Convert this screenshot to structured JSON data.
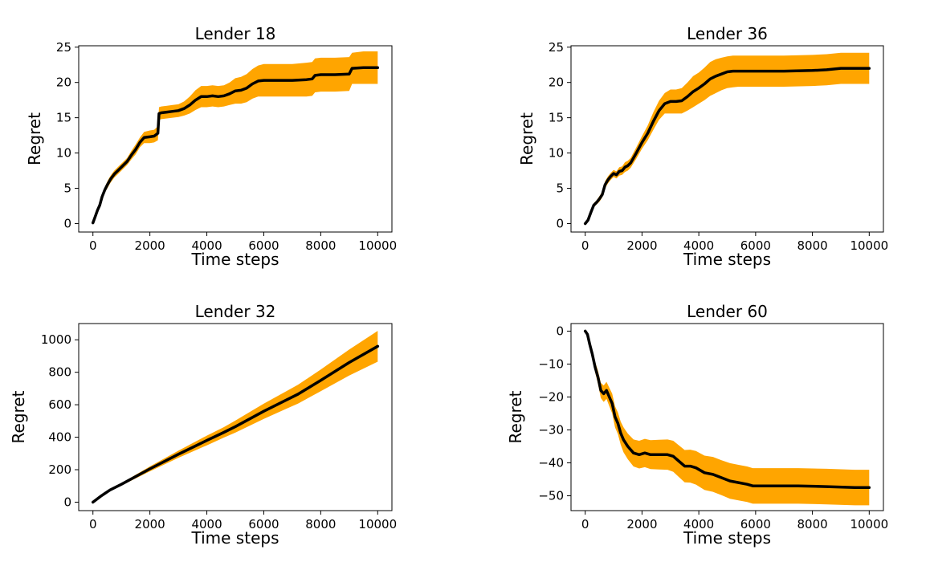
{
  "figure": {
    "background": "#ffffff",
    "band_color": "#FFA500",
    "line_color": "#000000"
  },
  "chart_data": [
    {
      "type": "line",
      "title": "Lender 18",
      "xlabel": "Time steps",
      "ylabel": "Regret",
      "xlim": [
        -500,
        10500
      ],
      "ylim": [
        -1.2,
        25.2
      ],
      "xticks": [
        0,
        2000,
        4000,
        6000,
        8000,
        10000
      ],
      "yticks": [
        0,
        5,
        10,
        15,
        20,
        25
      ],
      "series": [
        {
          "name": "mean",
          "x": [
            0,
            80,
            160,
            240,
            320,
            420,
            520,
            620,
            750,
            900,
            1050,
            1200,
            1350,
            1500,
            1650,
            1800,
            2000,
            2150,
            2280,
            2320,
            2400,
            2600,
            2800,
            3000,
            3200,
            3400,
            3600,
            3800,
            4000,
            4200,
            4400,
            4600,
            4800,
            5000,
            5200,
            5400,
            5600,
            5800,
            6000,
            6500,
            7000,
            7500,
            7700,
            7800,
            8000,
            8500,
            9000,
            9100,
            9500,
            10000
          ],
          "y": [
            0.1,
            1.0,
            1.9,
            2.6,
            3.8,
            4.8,
            5.6,
            6.3,
            7.0,
            7.6,
            8.2,
            8.8,
            9.7,
            10.5,
            11.5,
            12.2,
            12.3,
            12.4,
            12.8,
            15.6,
            15.7,
            15.8,
            15.9,
            16.0,
            16.3,
            16.8,
            17.5,
            18.0,
            18.0,
            18.1,
            18.0,
            18.1,
            18.4,
            18.8,
            18.9,
            19.2,
            19.8,
            20.2,
            20.3,
            20.3,
            20.3,
            20.4,
            20.5,
            21.0,
            21.1,
            21.1,
            21.2,
            22.0,
            22.1,
            22.1
          ],
          "lower": [
            0.0,
            0.8,
            1.6,
            2.3,
            3.4,
            4.4,
            5.1,
            5.8,
            6.5,
            7.1,
            7.7,
            8.3,
            9.1,
            9.8,
            10.8,
            11.4,
            11.4,
            11.5,
            11.8,
            14.7,
            14.8,
            14.9,
            15.0,
            15.1,
            15.3,
            15.6,
            16.1,
            16.5,
            16.5,
            16.6,
            16.5,
            16.6,
            16.8,
            17.0,
            17.0,
            17.2,
            17.7,
            18.0,
            18.0,
            18.0,
            18.0,
            18.0,
            18.1,
            18.6,
            18.7,
            18.7,
            18.8,
            19.8,
            19.8,
            19.8
          ],
          "upper": [
            0.3,
            1.2,
            2.2,
            2.9,
            4.2,
            5.2,
            6.1,
            6.8,
            7.5,
            8.1,
            8.7,
            9.3,
            10.3,
            11.2,
            12.2,
            13.0,
            13.2,
            13.3,
            13.8,
            16.5,
            16.6,
            16.7,
            16.8,
            16.9,
            17.3,
            18.0,
            18.9,
            19.5,
            19.5,
            19.6,
            19.5,
            19.6,
            20.0,
            20.6,
            20.8,
            21.2,
            21.9,
            22.4,
            22.6,
            22.6,
            22.6,
            22.8,
            22.9,
            23.4,
            23.5,
            23.5,
            23.6,
            24.2,
            24.4,
            24.4
          ]
        }
      ]
    },
    {
      "type": "line",
      "title": "Lender 36",
      "xlabel": "Time steps",
      "ylabel": "Regret",
      "xlim": [
        -500,
        10500
      ],
      "ylim": [
        -1.2,
        25.2
      ],
      "xticks": [
        0,
        2000,
        4000,
        6000,
        8000,
        10000
      ],
      "yticks": [
        0,
        5,
        10,
        15,
        20,
        25
      ],
      "series": [
        {
          "name": "mean",
          "x": [
            0,
            100,
            200,
            300,
            400,
            500,
            600,
            700,
            800,
            900,
            1000,
            1100,
            1200,
            1300,
            1400,
            1500,
            1600,
            1800,
            2000,
            2200,
            2400,
            2600,
            2800,
            3000,
            3200,
            3400,
            3600,
            3800,
            4000,
            4200,
            4400,
            4600,
            4800,
            5000,
            5200,
            5400,
            6000,
            7000,
            8000,
            8500,
            9000,
            10000
          ],
          "y": [
            0.0,
            0.5,
            1.6,
            2.6,
            3.0,
            3.5,
            4.1,
            5.5,
            6.2,
            6.7,
            7.1,
            6.9,
            7.4,
            7.5,
            8.0,
            8.2,
            8.6,
            10.0,
            11.5,
            12.8,
            14.5,
            16.0,
            17.0,
            17.3,
            17.3,
            17.4,
            18.0,
            18.7,
            19.2,
            19.8,
            20.5,
            20.9,
            21.2,
            21.5,
            21.6,
            21.6,
            21.6,
            21.6,
            21.7,
            21.8,
            22.0,
            22.0
          ],
          "lower": [
            0.0,
            0.4,
            1.3,
            2.3,
            2.7,
            3.1,
            3.7,
            5.0,
            5.7,
            6.2,
            6.6,
            6.4,
            6.8,
            6.9,
            7.3,
            7.5,
            7.9,
            9.2,
            10.6,
            11.8,
            13.3,
            14.7,
            15.6,
            15.6,
            15.6,
            15.6,
            16.0,
            16.5,
            17.0,
            17.5,
            18.1,
            18.5,
            18.9,
            19.2,
            19.3,
            19.4,
            19.4,
            19.4,
            19.5,
            19.6,
            19.8,
            19.8
          ],
          "upper": [
            0.1,
            0.7,
            1.9,
            2.9,
            3.3,
            3.9,
            4.5,
            6.0,
            6.7,
            7.2,
            7.6,
            7.4,
            8.0,
            8.1,
            8.7,
            8.9,
            9.3,
            10.8,
            12.4,
            13.9,
            15.8,
            17.4,
            18.5,
            19.0,
            19.0,
            19.2,
            20.0,
            20.9,
            21.4,
            22.1,
            22.9,
            23.3,
            23.5,
            23.7,
            23.8,
            23.8,
            23.8,
            23.8,
            23.9,
            24.0,
            24.2,
            24.2
          ]
        }
      ]
    },
    {
      "type": "line",
      "title": "Lender 32",
      "xlabel": "Time steps",
      "ylabel": "Regret",
      "xlim": [
        -500,
        10500
      ],
      "ylim": [
        -52,
        1100
      ],
      "xticks": [
        0,
        2000,
        4000,
        6000,
        8000,
        10000
      ],
      "yticks": [
        0,
        200,
        400,
        600,
        800,
        1000
      ],
      "series": [
        {
          "name": "mean",
          "x": [
            0,
            300,
            600,
            1000,
            2000,
            3000,
            4000,
            4600,
            5000,
            6000,
            6800,
            7200,
            8000,
            9000,
            10000
          ],
          "y": [
            0,
            40,
            75,
            110,
            205,
            295,
            380,
            430,
            465,
            560,
            630,
            665,
            750,
            860,
            960
          ],
          "lower": [
            0,
            38,
            70,
            103,
            190,
            273,
            350,
            398,
            428,
            513,
            576,
            607,
            683,
            780,
            865
          ],
          "upper": [
            0,
            42,
            80,
            117,
            220,
            317,
            410,
            462,
            502,
            607,
            684,
            723,
            817,
            940,
            1055
          ]
        }
      ]
    },
    {
      "type": "line",
      "title": "Lender 60",
      "xlabel": "Time steps",
      "ylabel": "Regret",
      "xlim": [
        -500,
        10500
      ],
      "ylim": [
        -54.5,
        2.3
      ],
      "xticks": [
        0,
        2000,
        4000,
        6000,
        8000,
        10000
      ],
      "yticks": [
        0,
        -10,
        -20,
        -30,
        -40,
        -50
      ],
      "series": [
        {
          "name": "mean",
          "x": [
            0,
            80,
            160,
            250,
            350,
            450,
            550,
            650,
            750,
            850,
            950,
            1050,
            1150,
            1250,
            1350,
            1500,
            1700,
            1900,
            2100,
            2300,
            2600,
            2900,
            3100,
            3300,
            3500,
            3700,
            3900,
            4200,
            4500,
            4800,
            5100,
            5400,
            5700,
            5900,
            6500,
            7500,
            8500,
            9500,
            10000
          ],
          "y": [
            0,
            -1,
            -4,
            -7,
            -11,
            -14,
            -18,
            -19,
            -18,
            -20,
            -22,
            -26,
            -28,
            -31,
            -33,
            -35,
            -37,
            -37.5,
            -37,
            -37.5,
            -37.5,
            -37.5,
            -38,
            -39.5,
            -41,
            -41,
            -41.5,
            -43,
            -43.5,
            -44.5,
            -45.5,
            -46,
            -46.5,
            -47,
            -47,
            -47,
            -47.2,
            -47.5,
            -47.5
          ],
          "lower": [
            0,
            -1.3,
            -4.8,
            -8.2,
            -12.6,
            -16.0,
            -20.3,
            -21.5,
            -20.6,
            -22.8,
            -25.0,
            -29.2,
            -31.3,
            -34.5,
            -36.8,
            -38.9,
            -41.1,
            -41.7,
            -41.3,
            -41.9,
            -42.0,
            -42.1,
            -42.7,
            -44.3,
            -45.9,
            -46.0,
            -46.6,
            -48.2,
            -48.8,
            -49.8,
            -50.9,
            -51.4,
            -51.9,
            -52.4,
            -52.4,
            -52.4,
            -52.6,
            -52.9,
            -52.9
          ],
          "upper": [
            0,
            -0.7,
            -3.2,
            -5.8,
            -9.4,
            -12.0,
            -15.7,
            -16.5,
            -15.4,
            -17.2,
            -19.0,
            -22.8,
            -24.7,
            -27.5,
            -29.2,
            -31.1,
            -32.9,
            -33.3,
            -32.7,
            -33.1,
            -33.0,
            -32.9,
            -33.3,
            -34.7,
            -36.1,
            -36.0,
            -36.4,
            -37.8,
            -38.2,
            -39.2,
            -40.1,
            -40.6,
            -41.1,
            -41.6,
            -41.6,
            -41.6,
            -41.8,
            -42.1,
            -42.1
          ]
        }
      ]
    }
  ]
}
